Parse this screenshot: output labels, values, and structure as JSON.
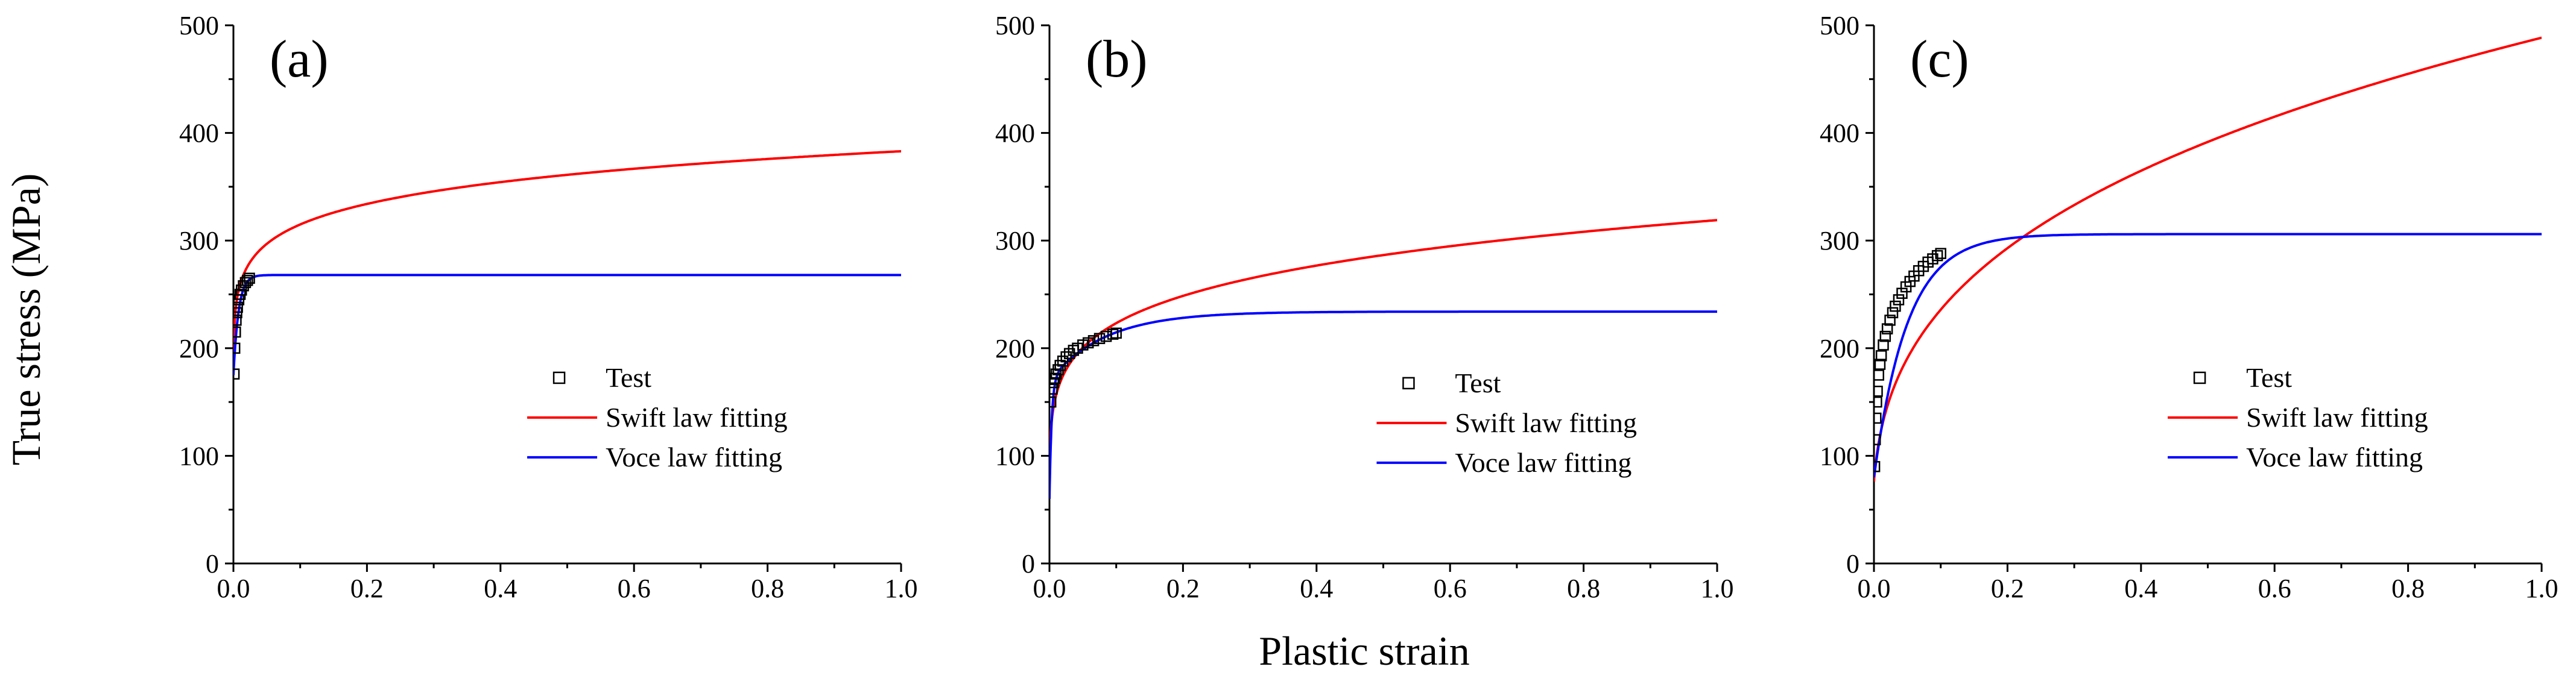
{
  "figure": {
    "ylabel": "True stress (MPa)",
    "xlabel": "Plastic strain"
  },
  "chart_data": [
    {
      "type": "line",
      "panel_label": "(a)",
      "xlim": [
        0,
        1.0
      ],
      "ylim": [
        0,
        500
      ],
      "xticks": [
        0.0,
        0.2,
        0.4,
        0.6,
        0.8,
        1.0
      ],
      "xtick_labels": [
        "0.0",
        "0.2",
        "0.4",
        "0.6",
        "0.8",
        "1.0"
      ],
      "yticks": [
        0,
        100,
        200,
        300,
        400,
        500
      ],
      "ytick_labels": [
        "0",
        "100",
        "200",
        "300",
        "400",
        "500"
      ],
      "legend_position": "center",
      "legend": [
        "Test",
        "Swift law fitting",
        "Voce law fitting"
      ],
      "series": [
        {
          "name": "Test",
          "style": "markers",
          "color": "#000000",
          "x": [
            0.001,
            0.002,
            0.003,
            0.004,
            0.005,
            0.006,
            0.008,
            0.01,
            0.012,
            0.015,
            0.018,
            0.021,
            0.024
          ],
          "y": [
            176,
            200,
            215,
            226,
            233,
            238,
            245,
            250,
            254,
            258,
            261,
            263,
            265
          ]
        },
        {
          "name": "Swift law fitting",
          "style": "line",
          "color": "#ff0000",
          "model": "swift",
          "K": 383,
          "e0": 0.0001,
          "n": 0.085
        },
        {
          "name": "Voce law fitting",
          "style": "line",
          "color": "#0000ff",
          "model": "voce",
          "s0": 175,
          "Q": 93,
          "b": 130
        }
      ]
    },
    {
      "type": "line",
      "panel_label": "(b)",
      "xlim": [
        0,
        1.0
      ],
      "ylim": [
        0,
        500
      ],
      "xticks": [
        0.0,
        0.2,
        0.4,
        0.6,
        0.8,
        1.0
      ],
      "xtick_labels": [
        "0.0",
        "0.2",
        "0.4",
        "0.6",
        "0.8",
        "1.0"
      ],
      "yticks": [
        0,
        100,
        200,
        300,
        400,
        500
      ],
      "ytick_labels": [
        "0",
        "100",
        "200",
        "300",
        "400",
        "500"
      ],
      "legend_position": "center-right",
      "legend": [
        "Test",
        "Swift law fitting",
        "Voce law fitting"
      ],
      "series": [
        {
          "name": "Test",
          "style": "markers",
          "color": "#000000",
          "x": [
            0.002,
            0.004,
            0.006,
            0.008,
            0.01,
            0.013,
            0.016,
            0.02,
            0.025,
            0.03,
            0.036,
            0.042,
            0.05,
            0.058,
            0.066,
            0.075,
            0.085,
            0.095,
            0.1
          ],
          "y": [
            150,
            162,
            168,
            172,
            176,
            180,
            184,
            188,
            192,
            195,
            198,
            200,
            203,
            205,
            207,
            209,
            211,
            213,
            214
          ]
        },
        {
          "name": "Swift law fitting",
          "style": "line",
          "color": "#ff0000",
          "model": "swift",
          "K": 319,
          "e0": 0.0001,
          "n": 0.155
        },
        {
          "name": "Voce law fitting",
          "style": "line",
          "color": "#0000ff",
          "model": "voce2",
          "s0": 60,
          "Q1": 110,
          "b1": 300,
          "Q2": 64,
          "b2": 12
        }
      ]
    },
    {
      "type": "line",
      "panel_label": "(c)",
      "xlim": [
        0,
        1.0
      ],
      "ylim": [
        0,
        500
      ],
      "xticks": [
        0.0,
        0.2,
        0.4,
        0.6,
        0.8,
        1.0
      ],
      "xtick_labels": [
        "0.0",
        "0.2",
        "0.4",
        "0.6",
        "0.8",
        "1.0"
      ],
      "yticks": [
        0,
        100,
        200,
        300,
        400,
        500
      ],
      "ytick_labels": [
        "0",
        "100",
        "200",
        "300",
        "400",
        "500"
      ],
      "legend_position": "center",
      "legend": [
        "Test",
        "Swift law fitting",
        "Voce law fitting"
      ],
      "series": [
        {
          "name": "Test",
          "style": "markers",
          "color": "#000000",
          "x": [
            0.001,
            0.002,
            0.003,
            0.004,
            0.005,
            0.007,
            0.009,
            0.011,
            0.014,
            0.017,
            0.02,
            0.024,
            0.028,
            0.032,
            0.037,
            0.042,
            0.048,
            0.054,
            0.06,
            0.067,
            0.074,
            0.081,
            0.088,
            0.095,
            0.1
          ],
          "y": [
            90,
            115,
            135,
            150,
            160,
            175,
            185,
            193,
            203,
            211,
            218,
            226,
            233,
            239,
            245,
            251,
            257,
            262,
            267,
            272,
            276,
            280,
            283,
            286,
            288
          ]
        },
        {
          "name": "Swift law fitting",
          "style": "line",
          "color": "#ff0000",
          "model": "swift",
          "K": 488,
          "e0": 0.003,
          "n": 0.32
        },
        {
          "name": "Voce law fitting",
          "style": "line",
          "color": "#0000ff",
          "model": "voce",
          "s0": 80,
          "Q": 226,
          "b": 20
        }
      ]
    }
  ]
}
